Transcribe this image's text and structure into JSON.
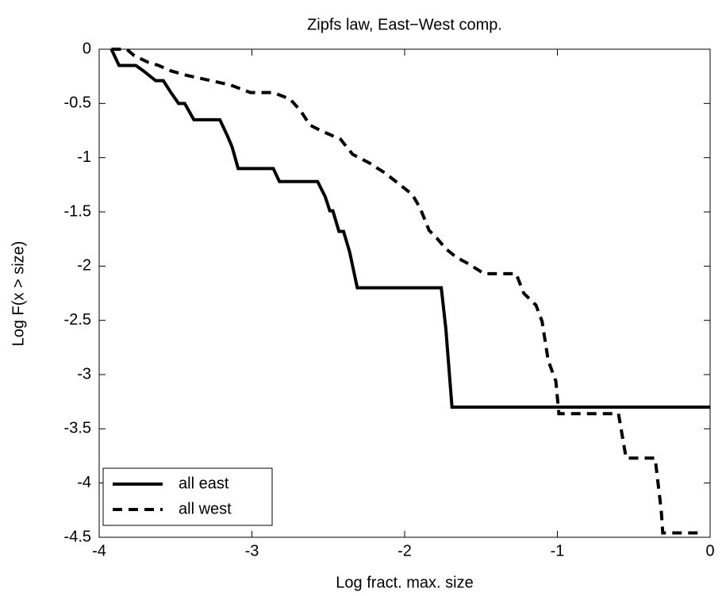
{
  "chart_data": {
    "type": "line",
    "title": "Zipfs law, East−West comp.",
    "x_label": "Log fract. max. size",
    "y_label": "Log F(x > size)",
    "xlim": [
      -4,
      0
    ],
    "ylim": [
      -4.5,
      0
    ],
    "xticks": [
      -4,
      -3,
      -2,
      -1,
      0
    ],
    "yticks": [
      -4.5,
      -4,
      -3.5,
      -3,
      -2.5,
      -2,
      -1.5,
      -1,
      -0.5,
      0
    ],
    "legend_position": "lower left",
    "series": [
      {
        "name": "all east",
        "color": "#000000",
        "dash": "solid",
        "x": [
          -3.92,
          -3.87,
          -3.76,
          -3.71,
          -3.63,
          -3.58,
          -3.53,
          -3.48,
          -3.44,
          -3.38,
          -3.21,
          -3.16,
          -3.13,
          -3.09,
          -2.86,
          -2.82,
          -2.57,
          -2.52,
          -2.49,
          -2.47,
          -2.43,
          -2.4,
          -2.36,
          -2.31,
          -1.76,
          -1.73,
          -1.69,
          0
        ],
        "values": [
          0,
          -0.15,
          -0.15,
          -0.2,
          -0.29,
          -0.29,
          -0.4,
          -0.5,
          -0.5,
          -0.65,
          -0.65,
          -0.8,
          -0.9,
          -1.1,
          -1.1,
          -1.22,
          -1.22,
          -1.36,
          -1.49,
          -1.49,
          -1.68,
          -1.68,
          -1.87,
          -2.2,
          -2.2,
          -2.58,
          -3.3,
          -3.3
        ]
      },
      {
        "name": "all west",
        "color": "#000000",
        "dash": "dashed",
        "x": [
          -3.92,
          -3.82,
          -3.77,
          -3.68,
          -3.61,
          -3.53,
          -3.43,
          -3.3,
          -3.14,
          -3.01,
          -2.86,
          -2.75,
          -2.68,
          -2.62,
          -2.55,
          -2.42,
          -2.34,
          -2.23,
          -2.13,
          -2.03,
          -1.95,
          -1.9,
          -1.84,
          -1.79,
          -1.73,
          -1.66,
          -1.58,
          -1.48,
          -1.27,
          -1.22,
          -1.14,
          -1.1,
          -1.06,
          -1.01,
          -0.99,
          -0.6,
          -0.55,
          -0.36,
          -0.32,
          -0.31,
          -0.04
        ],
        "values": [
          0,
          0,
          -0.06,
          -0.12,
          -0.15,
          -0.2,
          -0.24,
          -0.28,
          -0.33,
          -0.4,
          -0.4,
          -0.46,
          -0.57,
          -0.7,
          -0.75,
          -0.83,
          -0.97,
          -1.05,
          -1.14,
          -1.25,
          -1.34,
          -1.46,
          -1.67,
          -1.74,
          -1.84,
          -1.92,
          -1.98,
          -2.07,
          -2.07,
          -2.25,
          -2.36,
          -2.51,
          -2.87,
          -3.06,
          -3.36,
          -3.36,
          -3.77,
          -3.77,
          -4.25,
          -4.46,
          -4.46
        ]
      }
    ]
  }
}
